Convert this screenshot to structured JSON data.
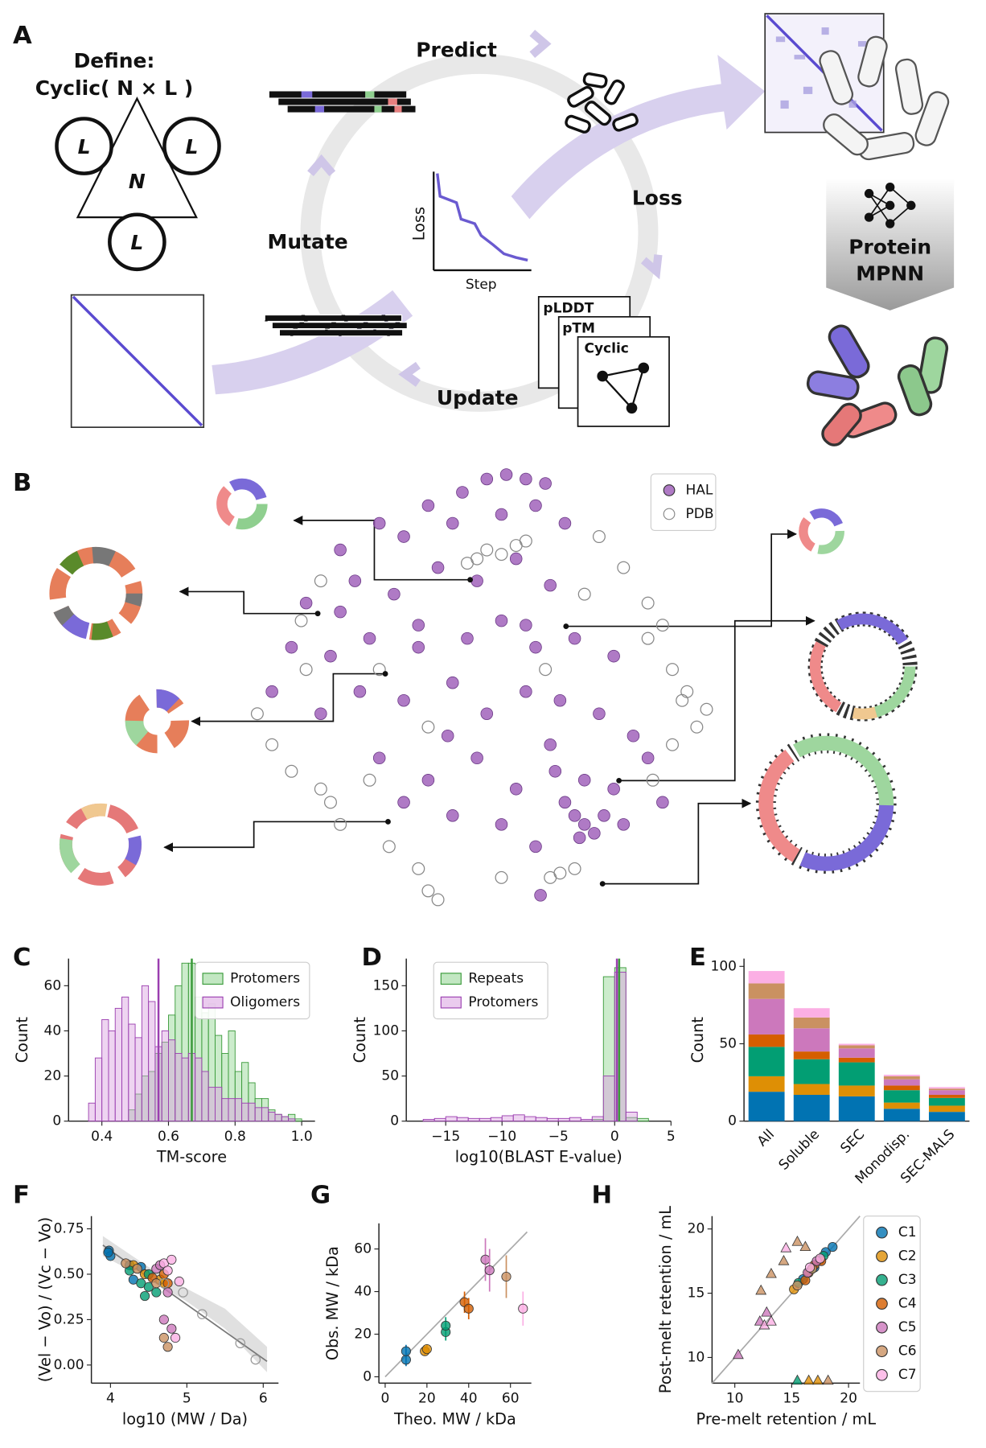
{
  "panel_labels": [
    "A",
    "B",
    "C",
    "D",
    "E",
    "F",
    "G",
    "H"
  ],
  "panel_a": {
    "define": "Define:",
    "cyclic": "Cyclic( N × L )",
    "subunits": [
      "L",
      "L",
      "L"
    ],
    "center": "N",
    "cycle": {
      "predict": "Predict",
      "loss": "Loss",
      "mutate": "Mutate",
      "update": "Update"
    },
    "loss_plot": {
      "ylabel": "Loss",
      "xlabel": "Step"
    },
    "metrics": [
      "pLDDT",
      "pTM",
      "Cyclic"
    ],
    "network": [
      "Protein",
      "MPNN"
    ]
  },
  "chart_data": [
    {
      "type": "scatter",
      "legend": "upper right",
      "xlim": [
        0,
        100
      ],
      "ylim": [
        0,
        100
      ],
      "series": [
        {
          "name": "HAL",
          "color": "#9b59b6",
          "filled": true,
          "x": [
            52,
            56,
            60,
            64,
            47,
            40,
            30,
            22,
            35,
            45,
            55,
            62,
            68,
            25,
            15,
            33,
            42,
            50,
            58,
            65,
            12,
            20,
            28,
            38,
            48,
            55,
            62,
            70,
            78,
            8,
            18,
            26,
            35,
            45,
            52,
            60,
            67,
            75,
            82,
            30,
            40,
            50,
            58,
            66,
            72,
            78,
            85,
            70,
            72,
            74,
            71,
            76,
            62,
            55,
            45,
            35,
            65,
            60,
            68,
            80,
            63,
            38,
            44,
            22,
            88
          ],
          "values": [
            98,
            99,
            98,
            97,
            95,
            92,
            88,
            82,
            85,
            88,
            90,
            92,
            88,
            75,
            70,
            72,
            78,
            75,
            80,
            74,
            60,
            58,
            62,
            65,
            62,
            66,
            60,
            62,
            58,
            50,
            45,
            50,
            48,
            52,
            45,
            50,
            48,
            45,
            40,
            35,
            30,
            35,
            28,
            32,
            30,
            28,
            35,
            22,
            20,
            18,
            17,
            22,
            15,
            20,
            22,
            25,
            38,
            65,
            25,
            20,
            4,
            60,
            40,
            68,
            25
          ]
        },
        {
          "name": "PDB",
          "color": "#888888",
          "filled": false,
          "x": [
            50,
            52,
            55,
            58,
            60,
            48,
            75,
            80,
            85,
            88,
            90,
            92,
            95,
            90,
            86,
            5,
            8,
            12,
            18,
            22,
            20,
            15,
            28,
            32,
            38,
            40,
            42,
            65,
            67,
            70,
            55,
            85,
            93,
            97,
            18,
            14,
            30,
            64,
            72,
            40
          ],
          "values": [
            80,
            82,
            81,
            83,
            84,
            79,
            85,
            78,
            70,
            65,
            55,
            48,
            42,
            38,
            30,
            45,
            38,
            32,
            28,
            20,
            25,
            55,
            30,
            15,
            10,
            5,
            3,
            8,
            9,
            10,
            8,
            62,
            50,
            46,
            75,
            66,
            55,
            55,
            72,
            42
          ]
        }
      ]
    },
    {
      "type": "histogram",
      "xlabel": "TM-score",
      "ylabel": "Count",
      "legend": "upper right",
      "bins": [
        0.36,
        0.38,
        0.4,
        0.42,
        0.44,
        0.46,
        0.48,
        0.5,
        0.52,
        0.54,
        0.56,
        0.58,
        0.6,
        0.62,
        0.64,
        0.66,
        0.68,
        0.7,
        0.72,
        0.74,
        0.76,
        0.78,
        0.8,
        0.82,
        0.84,
        0.86,
        0.88,
        0.9,
        0.92,
        0.94,
        0.96,
        0.98,
        1.0
      ],
      "series": [
        {
          "name": "Protomers",
          "color": "#8fd48f",
          "edgecolor": "#3a9a3a",
          "median": 0.67,
          "values": [
            0,
            0,
            0,
            0,
            0,
            0,
            5,
            12,
            20,
            22,
            30,
            35,
            47,
            60,
            70,
            70,
            55,
            48,
            52,
            38,
            30,
            40,
            22,
            26,
            17,
            10,
            10,
            5,
            3,
            2,
            3,
            1
          ]
        },
        {
          "name": "Oligomers",
          "color": "#d9a0e0",
          "edgecolor": "#9b3fb0",
          "median": 0.57,
          "values": [
            8,
            28,
            45,
            40,
            50,
            55,
            43,
            37,
            60,
            53,
            33,
            40,
            36,
            30,
            28,
            30,
            28,
            22,
            15,
            15,
            10,
            10,
            10,
            8,
            8,
            6,
            6,
            4,
            3,
            2,
            1,
            0
          ]
        }
      ],
      "xlim": [
        0.3,
        1.04
      ],
      "ylim": [
        0,
        72
      ],
      "xticks": [
        0.4,
        0.6,
        0.8,
        {
          "value": 1,
          "label": "1.0"
        }
      ],
      "yticks": [
        0,
        20,
        40,
        60
      ]
    },
    {
      "type": "histogram",
      "xlabel": "log10(BLAST E-value)",
      "ylabel": "Count",
      "legend": "upper left",
      "bins": [
        -18,
        -17,
        -16,
        -15,
        -14,
        -13,
        -12,
        -11,
        -10,
        -9,
        -8,
        -7,
        -6,
        -5,
        -4,
        -3,
        -2,
        -1,
        0,
        1,
        2,
        3
      ],
      "series": [
        {
          "name": "Repeats",
          "color": "#8fd48f",
          "edgecolor": "#3a9a3a",
          "median": 0.4,
          "values": [
            0,
            0,
            0,
            0,
            0,
            0,
            0,
            0,
            0,
            0,
            0,
            0,
            0,
            0,
            0,
            0,
            2,
            160,
            170,
            4,
            3
          ]
        },
        {
          "name": "Protomers",
          "color": "#d9a0e0",
          "edgecolor": "#9b3fb0",
          "median": 0.2,
          "values": [
            0,
            2,
            3,
            5,
            4,
            3,
            3,
            4,
            6,
            7,
            5,
            4,
            3,
            3,
            4,
            2,
            5,
            50,
            165,
            10,
            0
          ]
        }
      ],
      "xlim": [
        -18.5,
        5
      ],
      "ylim": [
        0,
        180
      ],
      "xticks": [
        {
          "value": -15,
          "label": "−15"
        },
        {
          "value": -10,
          "label": "−10"
        },
        {
          "value": -5,
          "label": "−5"
        },
        0,
        5
      ],
      "yticks": [
        0,
        50,
        100,
        150
      ]
    },
    {
      "type": "stacked_bar",
      "ylabel": "Count",
      "categories": [
        "All",
        "Soluble",
        "SEC",
        "Monodisp.",
        "SEC-MALS"
      ],
      "series": [
        {
          "color": "#0173b2",
          "values": [
            19,
            17,
            16,
            8,
            6
          ]
        },
        {
          "color": "#de8f05",
          "values": [
            10,
            7,
            7,
            4,
            4
          ]
        },
        {
          "color": "#029e73",
          "values": [
            19,
            16,
            15,
            8,
            5
          ]
        },
        {
          "color": "#d55e00",
          "values": [
            8,
            5,
            3,
            3,
            2
          ]
        },
        {
          "color": "#cc78bc",
          "values": [
            23,
            15,
            6,
            4,
            3
          ]
        },
        {
          "color": "#ca9161",
          "values": [
            10,
            7,
            2,
            2,
            1
          ]
        },
        {
          "color": "#fbafe4",
          "values": [
            8,
            6,
            1,
            1,
            1
          ]
        }
      ],
      "ylim": [
        0,
        105
      ],
      "yticks": [
        0,
        50,
        100
      ]
    },
    {
      "type": "scatter",
      "xlabel": "log10 (MW / Da)",
      "ylabel": "(Vel − Vo) / (Vc − Vo)",
      "series": [
        {
          "color": "#0173b2",
          "filled": true,
          "x": [
            3.98,
            4.0,
            3.97,
            4.25,
            4.3,
            4.4
          ],
          "values": [
            0.63,
            0.6,
            0.62,
            0.55,
            0.47,
            0.54
          ]
        },
        {
          "color": "#de8f05",
          "filled": true,
          "x": [
            4.3,
            4.45,
            4.65,
            4.7
          ],
          "values": [
            0.55,
            0.5,
            0.47,
            0.45
          ]
        },
        {
          "color": "#029e73",
          "filled": true,
          "x": [
            4.25,
            4.4,
            4.45,
            4.5,
            4.6,
            4.5
          ],
          "values": [
            0.52,
            0.45,
            0.38,
            0.43,
            0.4,
            0.5
          ]
        },
        {
          "color": "#d55e00",
          "filled": true,
          "x": [
            4.55,
            4.7,
            4.75
          ],
          "values": [
            0.48,
            0.5,
            0.45
          ]
        },
        {
          "color": "#cc78bc",
          "filled": true,
          "x": [
            4.6,
            4.75,
            4.7,
            4.8,
            4.65
          ],
          "values": [
            0.53,
            0.4,
            0.25,
            0.2,
            0.55
          ]
        },
        {
          "color": "#ca9161",
          "filled": true,
          "x": [
            4.2,
            4.35,
            4.6,
            4.75,
            4.7
          ],
          "values": [
            0.56,
            0.53,
            0.45,
            0.1,
            0.15
          ]
        },
        {
          "color": "#fbafe4",
          "filled": true,
          "x": [
            4.7,
            4.8,
            4.9,
            4.85,
            4.75
          ],
          "values": [
            0.56,
            0.58,
            0.46,
            0.15,
            0.52
          ]
        },
        {
          "color": "#999999",
          "filled": false,
          "x": [
            4.7,
            5.2,
            5.7,
            5.9,
            4.95
          ],
          "values": [
            0.45,
            0.28,
            0.12,
            0.03,
            0.4
          ]
        }
      ],
      "fit": {
        "x": [
          3.9,
          6.05
        ],
        "values": [
          0.66,
          0.02
        ]
      },
      "band": {
        "x": [
          3.9,
          4.5,
          5,
          5.5,
          6.05
        ],
        "lower": [
          0.6,
          0.47,
          0.35,
          0.2,
          -0.04
        ],
        "upper": [
          0.71,
          0.54,
          0.42,
          0.31,
          0.1
        ]
      },
      "xlim": [
        3.75,
        6.2
      ],
      "ylim": [
        -0.1,
        0.82
      ],
      "xticks": [
        4,
        5,
        6
      ],
      "yticks": [
        {
          "value": 0,
          "label": "0.00"
        },
        0.25,
        {
          "value": 0.5,
          "label": "0.50"
        },
        0.75
      ]
    },
    {
      "type": "scatter",
      "xlabel": "Theo. MW / kDa",
      "ylabel": "Obs. MW / kDa",
      "series": [
        {
          "color": "#0173b2",
          "filled": true,
          "x": [
            10,
            10
          ],
          "values": [
            8,
            12
          ],
          "errors": [
            3,
            3
          ]
        },
        {
          "color": "#de8f05",
          "filled": true,
          "x": [
            19,
            20
          ],
          "values": [
            12,
            13
          ],
          "errors": [
            2,
            2
          ]
        },
        {
          "color": "#029e73",
          "filled": true,
          "x": [
            29,
            29
          ],
          "values": [
            21,
            24
          ],
          "errors": [
            4,
            4
          ]
        },
        {
          "color": "#d55e00",
          "filled": true,
          "x": [
            38,
            40
          ],
          "values": [
            35,
            32
          ],
          "errors": [
            5,
            5
          ]
        },
        {
          "color": "#cc78bc",
          "filled": true,
          "x": [
            48,
            50
          ],
          "values": [
            55,
            50
          ],
          "errors": [
            10,
            10
          ]
        },
        {
          "color": "#ca9161",
          "filled": true,
          "x": [
            58
          ],
          "values": [
            47
          ],
          "errors": [
            10
          ]
        },
        {
          "color": "#fbafe4",
          "filled": true,
          "x": [
            66
          ],
          "values": [
            32
          ],
          "errors": [
            8
          ]
        }
      ],
      "reference_line": {
        "x": [
          0,
          68
        ],
        "values": [
          0,
          68
        ]
      },
      "xlim": [
        -3,
        70
      ],
      "ylim": [
        -3,
        72
      ],
      "xticks": [
        0,
        20,
        40,
        60
      ],
      "yticks": [
        0,
        20,
        40,
        60
      ]
    },
    {
      "type": "scatter",
      "xlabel": "Pre-melt retention / mL",
      "ylabel": "Post-melt retention / mL",
      "legend": "right",
      "series": [
        {
          "name": "C1",
          "color": "#0173b2",
          "filled": true,
          "x": [
            16,
            17,
            18,
            18.6
          ],
          "values": [
            16.1,
            17,
            18.2,
            18.6
          ],
          "markers": [
            "o",
            "o",
            "o",
            "o"
          ]
        },
        {
          "name": "C2",
          "color": "#de8f05",
          "filled": true,
          "x": [
            15.2,
            16.5,
            17.5,
            16.5,
            17.3
          ],
          "values": [
            15.3,
            16.6,
            17.6,
            8.2,
            8.2
          ],
          "markers": [
            "o",
            "o",
            "o",
            "^",
            "^"
          ]
        },
        {
          "name": "C3",
          "color": "#029e73",
          "filled": true,
          "x": [
            15.6,
            16.8,
            17.8,
            15.5
          ],
          "values": [
            15.8,
            16.9,
            17.9,
            8.2
          ],
          "markers": [
            "o",
            "o",
            "o",
            "^"
          ]
        },
        {
          "name": "C4",
          "color": "#d55e00",
          "filled": true,
          "x": [
            16.2,
            17,
            17.6
          ],
          "values": [
            16,
            17.2,
            17.5
          ],
          "markers": [
            "o",
            "o",
            "o"
          ]
        },
        {
          "name": "C5",
          "color": "#cc78bc",
          "filled": true,
          "x": [
            16.4,
            17.2,
            10.3,
            12.2,
            12.8
          ],
          "values": [
            16.6,
            17.5,
            10.2,
            12.8,
            13.5
          ],
          "markers": [
            "o",
            "o",
            "^",
            "^",
            "^"
          ]
        },
        {
          "name": "C6",
          "color": "#ca9161",
          "filled": true,
          "x": [
            15.5,
            16.8,
            12.3,
            13.2,
            14.3,
            15.5,
            16.2,
            18.2
          ],
          "values": [
            15.6,
            16.9,
            15.2,
            16.5,
            17.5,
            19,
            18.6,
            8.2
          ],
          "markers": [
            "o",
            "o",
            "^",
            "^",
            "^",
            "^",
            "^",
            "^"
          ]
        },
        {
          "name": "C7",
          "color": "#fbafe4",
          "filled": true,
          "x": [
            16.6,
            17.5,
            12.6,
            13.2,
            14.5
          ],
          "values": [
            17,
            17.7,
            12.5,
            12.8,
            18.5
          ],
          "markers": [
            "o",
            "o",
            "^",
            "^",
            "^"
          ]
        }
      ],
      "reference_line": {
        "x": [
          8,
          21
        ],
        "values": [
          8,
          21
        ]
      },
      "xlim": [
        8,
        21
      ],
      "ylim": [
        8,
        21
      ],
      "xticks": [
        10,
        15,
        20
      ],
      "yticks": [
        10,
        15,
        20
      ]
    }
  ]
}
